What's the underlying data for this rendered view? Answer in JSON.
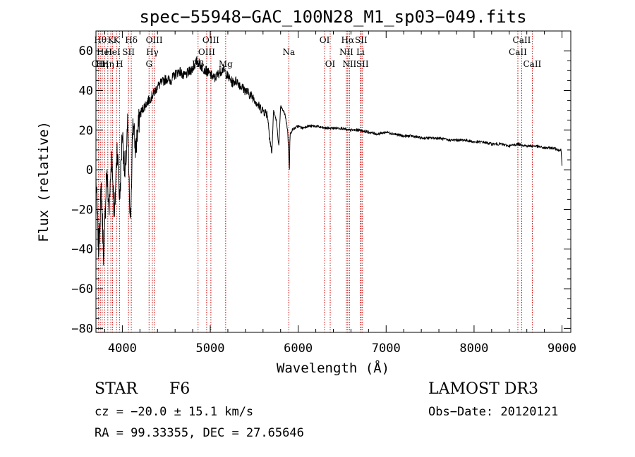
{
  "chart_data": {
    "type": "line",
    "title": "spec−55948−GAC_100N28_M1_sp03−049.fits",
    "xlabel": "Wavelength (Å)",
    "ylabel": "Flux (relative)",
    "xlim": [
      3700,
      9100
    ],
    "ylim": [
      -82,
      70
    ],
    "xticks": [
      4000,
      5000,
      6000,
      7000,
      8000,
      9000
    ],
    "yticks": [
      -80,
      -60,
      -40,
      -20,
      0,
      20,
      40,
      60
    ],
    "xtick_labels": [
      "4000",
      "5000",
      "6000",
      "7000",
      "8000",
      "9000"
    ],
    "ytick_labels": [
      "−80",
      "−60",
      "−40",
      "−20",
      "0",
      "20",
      "40",
      "60"
    ],
    "series": [
      {
        "name": "flux",
        "x": [
          3700,
          3730,
          3760,
          3790,
          3820,
          3850,
          3880,
          3910,
          3940,
          3970,
          4000,
          4030,
          4060,
          4090,
          4120,
          4150,
          4200,
          4250,
          4300,
          4350,
          4400,
          4450,
          4500,
          4550,
          4600,
          4650,
          4700,
          4750,
          4800,
          4850,
          4900,
          4950,
          5000,
          5050,
          5100,
          5150,
          5200,
          5250,
          5300,
          5350,
          5400,
          5450,
          5500,
          5550,
          5600,
          5650,
          5680,
          5700,
          5720,
          5750,
          5780,
          5800,
          5850,
          5880,
          5900,
          5905,
          5910,
          5930,
          5960,
          6000,
          6050,
          6100,
          6200,
          6300,
          6400,
          6500,
          6560,
          6600,
          6700,
          6800,
          6900,
          7000,
          7100,
          7200,
          7300,
          7400,
          7500,
          7600,
          7700,
          7800,
          7900,
          8000,
          8100,
          8200,
          8300,
          8400,
          8500,
          8600,
          8700,
          8800,
          8900,
          8960,
          8990,
          9000
        ],
        "values": [
          -5,
          -40,
          -10,
          -45,
          0,
          -20,
          8,
          -25,
          12,
          -15,
          20,
          -5,
          22,
          -30,
          25,
          10,
          28,
          32,
          35,
          38,
          42,
          44,
          46,
          45,
          48,
          50,
          47,
          49,
          51,
          55,
          52,
          50,
          48,
          46,
          49,
          51,
          47,
          44,
          45,
          42,
          40,
          38,
          36,
          32,
          30,
          28,
          15,
          8,
          30,
          25,
          12,
          32,
          28,
          20,
          0,
          14,
          18,
          20,
          21,
          22,
          21,
          22,
          22,
          21,
          21,
          21,
          20,
          20,
          20,
          19,
          18,
          19,
          18,
          17,
          17,
          16,
          16,
          16,
          15,
          15,
          15,
          14,
          14,
          13,
          13,
          12,
          13,
          12,
          12,
          11,
          11,
          10,
          10,
          2
        ]
      }
    ],
    "emission_lines": [
      {
        "wavelength": 3727,
        "label": "OII",
        "row": 2
      },
      {
        "wavelength": 3750,
        "label": "Hθ",
        "row": 0
      },
      {
        "wavelength": 3771,
        "label": "Hη",
        "row": 2
      },
      {
        "wavelength": 3798,
        "label": "HeI",
        "row": 1
      },
      {
        "wavelength": 3835,
        "label": "Hη",
        "row": 2
      },
      {
        "wavelength": 3869,
        "label": "K",
        "row": 0
      },
      {
        "wavelength": 3889,
        "label": "HeI",
        "row": 1
      },
      {
        "wavelength": 3934,
        "label": "K",
        "row": 0
      },
      {
        "wavelength": 3968,
        "label": "H",
        "row": 2
      },
      {
        "wavelength": 4070,
        "label": "SII",
        "row": 1
      },
      {
        "wavelength": 4102,
        "label": "Hδ",
        "row": 0
      },
      {
        "wavelength": 4304,
        "label": "G",
        "row": 2
      },
      {
        "wavelength": 4341,
        "label": "Hγ",
        "row": 1
      },
      {
        "wavelength": 4363,
        "label": "OIII",
        "row": 0
      },
      {
        "wavelength": 4861,
        "label": "Hβ",
        "row": 2
      },
      {
        "wavelength": 4959,
        "label": "OIII",
        "row": 1
      },
      {
        "wavelength": 5007,
        "label": "OIII",
        "row": 0
      },
      {
        "wavelength": 5175,
        "label": "Mg",
        "row": 2
      },
      {
        "wavelength": 5893,
        "label": "Na",
        "row": 1
      },
      {
        "wavelength": 6300,
        "label": "OI",
        "row": 0
      },
      {
        "wavelength": 6364,
        "label": "OI",
        "row": 2
      },
      {
        "wavelength": 6548,
        "label": "NII",
        "row": 1
      },
      {
        "wavelength": 6563,
        "label": "Hα",
        "row": 0
      },
      {
        "wavelength": 6583,
        "label": "NII",
        "row": 2
      },
      {
        "wavelength": 6708,
        "label": "Li",
        "row": 1
      },
      {
        "wavelength": 6716,
        "label": "SII",
        "row": 0
      },
      {
        "wavelength": 6731,
        "label": "SII",
        "row": 2
      },
      {
        "wavelength": 8498,
        "label": "CaII",
        "row": 1
      },
      {
        "wavelength": 8542,
        "label": "CaII",
        "row": 0
      },
      {
        "wavelength": 8662,
        "label": "CaII",
        "row": 2
      }
    ]
  },
  "info": {
    "object_class": "STAR",
    "subclass": "F6",
    "survey": "LAMOST DR3",
    "redshift": "cz = −20.0 ± 15.1 km/s",
    "obs_date": "Obs−Date: 20120121",
    "coords": "RA =  99.33355, DEC =  27.65646"
  },
  "colors": {
    "spectrum": "#000000",
    "line_markers": "#cc0000",
    "axes": "#000000"
  }
}
